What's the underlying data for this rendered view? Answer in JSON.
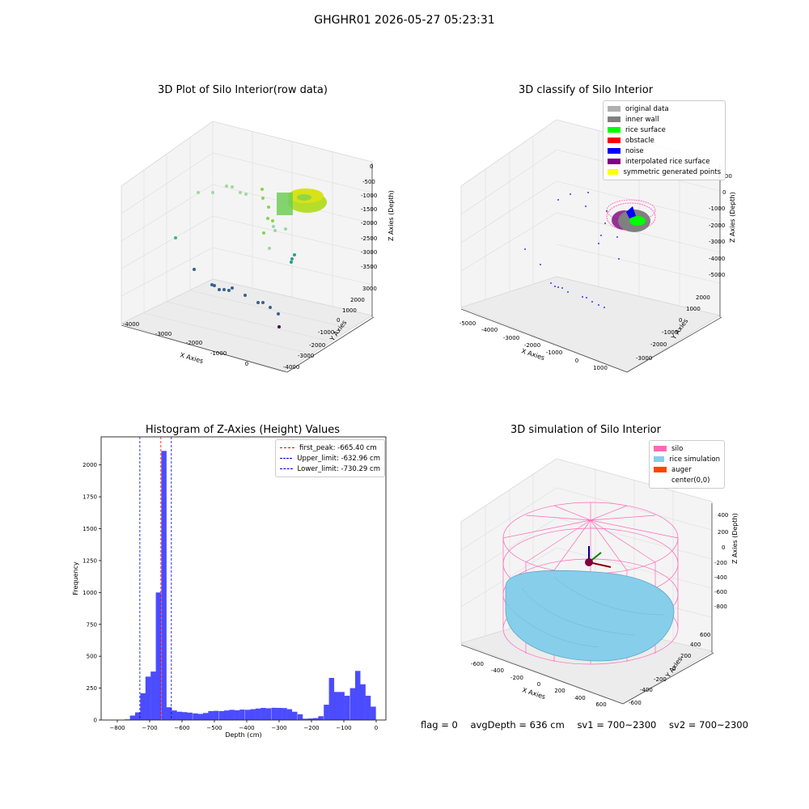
{
  "figure": {
    "title": "GHGHR01 2026-05-27 05:23:31",
    "footer": {
      "flag": "flag = 0",
      "avg_depth": "avgDepth = 636 cm",
      "sv1": "sv1 = 700~2300",
      "sv2": "sv2 = 700~2300"
    }
  },
  "colors": {
    "hist_bar": "#0000ff",
    "first_peak": "#ff0000",
    "limits": "#0000cc",
    "silo": "#ff69b4",
    "rice": "#87ceeb",
    "auger": "#ff4500"
  },
  "chart_data": [
    {
      "type": "scatter3d",
      "title": "3D Plot of Silo Interior(row data)",
      "xlabel": "X Axies",
      "ylabel": "Y Axies",
      "zlabel": "Z Axies (Depth)",
      "x_ticks": [
        "-4000",
        "-3000",
        "-2000",
        "-1000",
        "0"
      ],
      "y_ticks": [
        "-4000",
        "-3000",
        "-2000",
        "-1000",
        "0",
        "1000",
        "2000",
        "3000"
      ],
      "z_ticks": [
        "0",
        "-500",
        "-1000",
        "-1500",
        "-2000",
        "-2500",
        "-3000",
        "-3500"
      ],
      "colormap": "viridis",
      "grid": true
    },
    {
      "type": "scatter3d",
      "title": "3D classify of Silo Interior",
      "xlabel": "X Axies",
      "ylabel": "Y Axies",
      "zlabel": "Z Axies (Depth)",
      "x_ticks": [
        "-5000",
        "-4000",
        "-3000",
        "-2000",
        "-1000",
        "0",
        "1000"
      ],
      "y_ticks": [
        "-3000",
        "-2000",
        "-1000",
        "0",
        "1000",
        "2000"
      ],
      "z_ticks": [
        "1000",
        "0",
        "-1000",
        "-2000",
        "-3000",
        "-4000",
        "-5000"
      ],
      "legend": [
        {
          "label": "original data",
          "color": "#b0b0b0"
        },
        {
          "label": "inner wall",
          "color": "#808080"
        },
        {
          "label": "rice surface",
          "color": "#00ff00"
        },
        {
          "label": "obstacle",
          "color": "#ff0000"
        },
        {
          "label": "noise",
          "color": "#0000ff"
        },
        {
          "label": "interpolated rice surface",
          "color": "#800080"
        },
        {
          "label": "symmetric generated points",
          "color": "#ffff00"
        }
      ],
      "legend_position": "top-right",
      "grid": true
    },
    {
      "type": "bar",
      "title": "Histogram of Z-Axies (Height) Values",
      "xlabel": "Depth (cm)",
      "ylabel": "Frequency",
      "xlim": [
        -850,
        30
      ],
      "ylim": [
        0,
        2220
      ],
      "x_ticks": [
        -800,
        -700,
        -600,
        -500,
        -400,
        -300,
        -200,
        -100,
        0
      ],
      "y_ticks": [
        0,
        250,
        500,
        750,
        1000,
        1250,
        1500,
        1750,
        2000
      ],
      "bin_width": 16.2,
      "bins": [
        {
          "x0": -777,
          "v": 5
        },
        {
          "x0": -761,
          "v": 35
        },
        {
          "x0": -745,
          "v": 60
        },
        {
          "x0": -729,
          "v": 210
        },
        {
          "x0": -713,
          "v": 340
        },
        {
          "x0": -697,
          "v": 380
        },
        {
          "x0": -681,
          "v": 1000
        },
        {
          "x0": -664,
          "v": 2110
        },
        {
          "x0": -648,
          "v": 100
        },
        {
          "x0": -632,
          "v": 75
        },
        {
          "x0": -616,
          "v": 65
        },
        {
          "x0": -600,
          "v": 62
        },
        {
          "x0": -584,
          "v": 58
        },
        {
          "x0": -567,
          "v": 52
        },
        {
          "x0": -551,
          "v": 48
        },
        {
          "x0": -535,
          "v": 55
        },
        {
          "x0": -519,
          "v": 70
        },
        {
          "x0": -503,
          "v": 72
        },
        {
          "x0": -486,
          "v": 70
        },
        {
          "x0": -470,
          "v": 75
        },
        {
          "x0": -454,
          "v": 80
        },
        {
          "x0": -438,
          "v": 76
        },
        {
          "x0": -422,
          "v": 82
        },
        {
          "x0": -405,
          "v": 80
        },
        {
          "x0": -389,
          "v": 85
        },
        {
          "x0": -373,
          "v": 90
        },
        {
          "x0": -357,
          "v": 95
        },
        {
          "x0": -341,
          "v": 92
        },
        {
          "x0": -324,
          "v": 96
        },
        {
          "x0": -308,
          "v": 95
        },
        {
          "x0": -292,
          "v": 94
        },
        {
          "x0": -276,
          "v": 85
        },
        {
          "x0": -260,
          "v": 65
        },
        {
          "x0": -243,
          "v": 45
        },
        {
          "x0": -227,
          "v": 10
        },
        {
          "x0": -211,
          "v": 12
        },
        {
          "x0": -195,
          "v": 15
        },
        {
          "x0": -179,
          "v": 30
        },
        {
          "x0": -162,
          "v": 120
        },
        {
          "x0": -146,
          "v": 330
        },
        {
          "x0": -130,
          "v": 220
        },
        {
          "x0": -114,
          "v": 220
        },
        {
          "x0": -98,
          "v": 190
        },
        {
          "x0": -81,
          "v": 250
        },
        {
          "x0": -65,
          "v": 385
        },
        {
          "x0": -49,
          "v": 280
        },
        {
          "x0": -33,
          "v": 190
        },
        {
          "x0": -17,
          "v": 105
        }
      ],
      "vlines": [
        {
          "label": "first_peak: -665.40 cm",
          "x": -665.4,
          "color": "#ff0000"
        },
        {
          "label": "Upper_limit: -632.96 cm",
          "x": -632.96,
          "color": "#0000cc"
        },
        {
          "label": "Lower_limit: -730.29 cm",
          "x": -730.29,
          "color": "#0000cc"
        }
      ],
      "legend_position": "top-right"
    },
    {
      "type": "surface3d",
      "title": "3D simulation of Silo Interior",
      "xlabel": "X Axies",
      "ylabel": "Y Axies",
      "zlabel": "Z Axies (Depth)",
      "x_ticks": [
        "-600",
        "-400",
        "-200",
        "0",
        "200",
        "400",
        "600"
      ],
      "y_ticks": [
        "-600",
        "-400",
        "-200",
        "0",
        "200",
        "400",
        "600"
      ],
      "z_ticks": [
        "400",
        "200",
        "0",
        "-200",
        "-400",
        "-600",
        "-800"
      ],
      "legend": [
        {
          "label": "silo",
          "color": "#ff69b4"
        },
        {
          "label": "rice simulation",
          "color": "#87ceeb"
        },
        {
          "label": "auger",
          "color": "#ff4500"
        },
        {
          "label": "center(0,0)",
          "color": ""
        }
      ],
      "legend_position": "top-right",
      "grid": true
    }
  ]
}
